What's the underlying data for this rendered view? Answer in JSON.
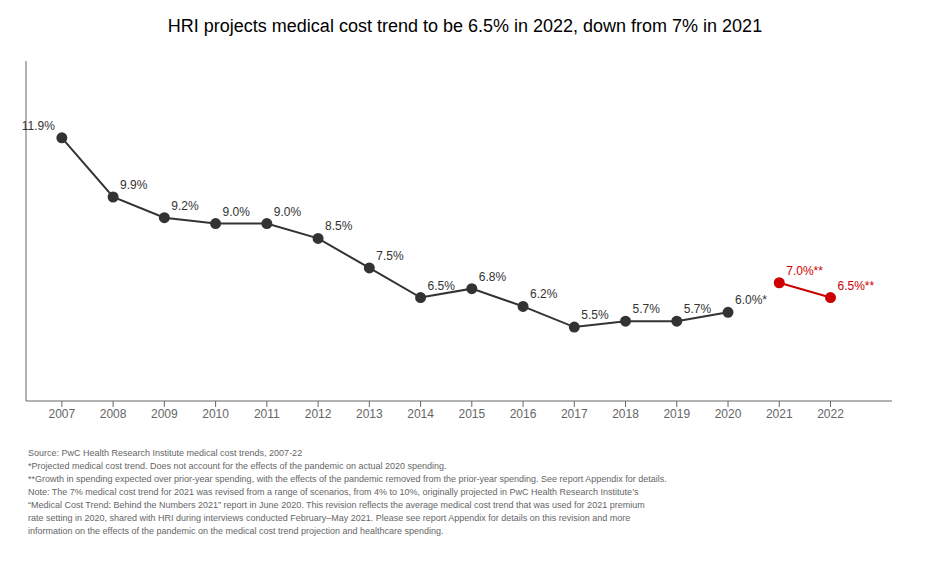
{
  "chart_data": {
    "type": "line",
    "title": "HRI projects medical cost trend to be 6.5% in 2022, down from 7% in 2021",
    "x": [
      2007,
      2008,
      2009,
      2010,
      2011,
      2012,
      2013,
      2014,
      2015,
      2016,
      2017,
      2018,
      2019,
      2020,
      2021,
      2022
    ],
    "xlim": [
      2006.3,
      2023.2
    ],
    "xticks": [
      2007,
      2008,
      2009,
      2010,
      2011,
      2012,
      2013,
      2014,
      2015,
      2016,
      2017,
      2018,
      2019,
      2020,
      2021,
      2022
    ],
    "ylim": [
      3.0,
      14.5
    ],
    "tick_labels": "x",
    "grid": false,
    "marker": "circle",
    "data_labels": true,
    "series": [
      {
        "color": "#333333",
        "values": [
          11.9,
          9.9,
          9.2,
          9.0,
          9.0,
          8.5,
          7.5,
          6.5,
          6.8,
          6.2,
          5.5,
          5.7,
          5.7,
          6.0,
          null,
          null
        ],
        "value_labels": [
          "11.9%",
          "9.9%",
          "9.2%",
          "9.0%",
          "9.0%",
          "8.5%",
          "7.5%",
          "6.5%",
          "6.8%",
          "6.2%",
          "5.5%",
          "5.7%",
          "5.7%",
          "6.0%*",
          null,
          null
        ]
      },
      {
        "color": "#cc0000",
        "values": [
          null,
          null,
          null,
          null,
          null,
          null,
          null,
          null,
          null,
          null,
          null,
          null,
          null,
          null,
          7.0,
          6.5
        ],
        "value_labels": [
          null,
          null,
          null,
          null,
          null,
          null,
          null,
          null,
          null,
          null,
          null,
          null,
          null,
          null,
          "7.0%**",
          "6.5%**"
        ]
      }
    ],
    "annotations": [
      "Source: PwC Health Research Institute medical cost trends, 2007-22",
      "*Projected medical cost trend. Does not account for the effects of the pandemic on actual 2020 spending.",
      "**Growth in spending expected over prior-year spending, with the effects of the pandemic removed from the prior-year spending. See report Appendix for details.",
      "Note: The 7% medical cost trend for 2021 was revised from a range of scenarios, from 4% to 10%, originally projected in PwC Health Research Institute’s",
      "“Medical Cost Trend: Behind the Numbers 2021” report in June 2020. This revision reflects the average medical cost trend that was used for 2021 premium",
      "rate setting in 2020, shared with HRI during interviews conducted February–May 2021. Please see report Appendix for details on this revision and more",
      "information on the effects of the pandemic on the medical cost trend projection and healthcare spending."
    ]
  }
}
